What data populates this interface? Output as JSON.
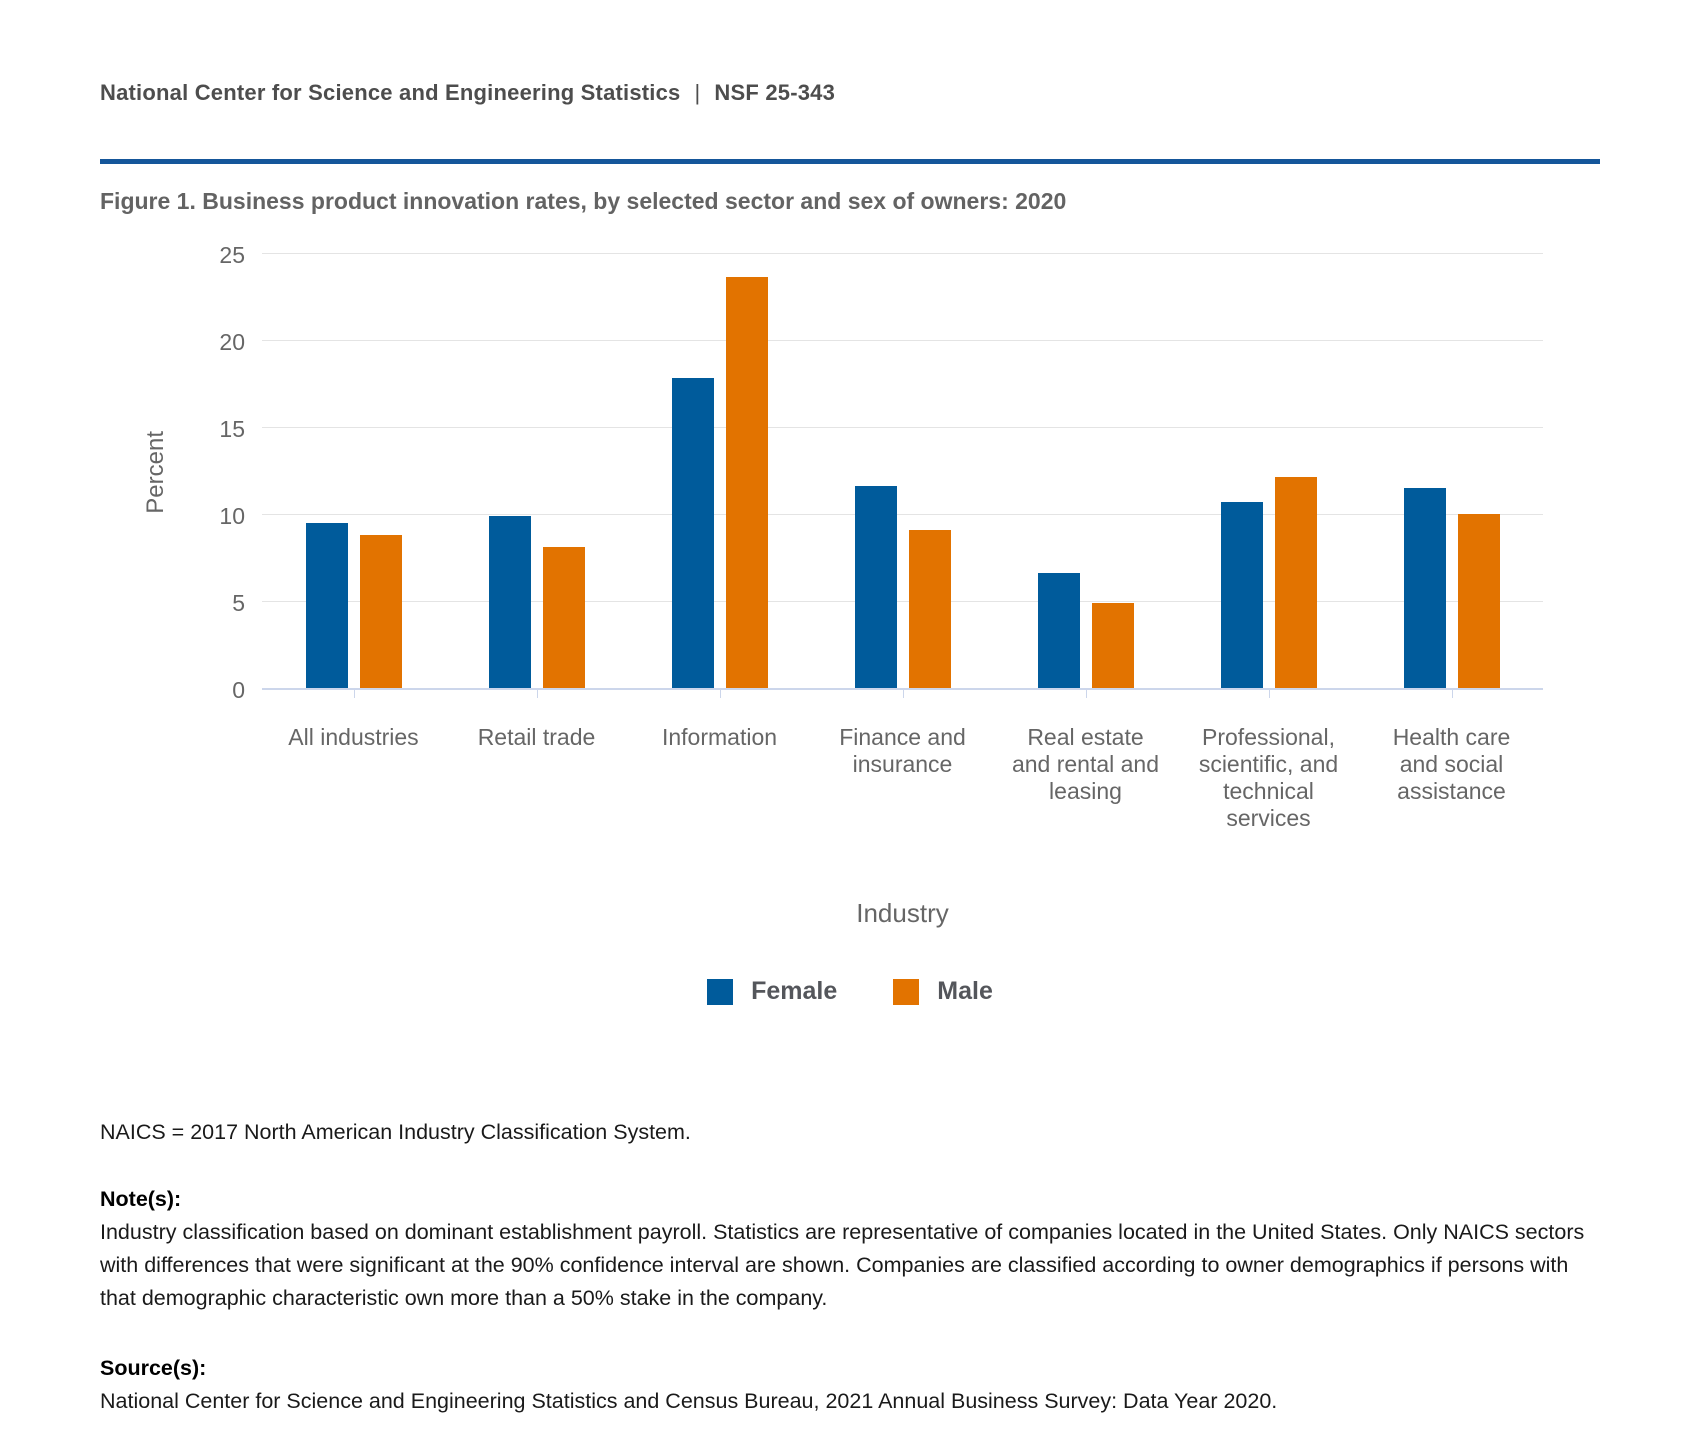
{
  "header": {
    "org": "National Center for Science and Engineering Statistics",
    "divider": "|",
    "report_number": "NSF 25-343"
  },
  "figure": {
    "title": "Figure 1. Business product innovation rates, by selected sector and sex of owners: 2020"
  },
  "chart_data": {
    "type": "bar",
    "title": "Figure 1. Business product innovation rates, by selected sector and sex of owners: 2020",
    "categories": [
      "All industries",
      "Retail trade",
      "Information",
      "Finance and insurance",
      "Real estate and rental and leasing",
      "Professional, scientific, and technical services",
      "Health care and social assistance"
    ],
    "category_label_lines": [
      [
        "All industries"
      ],
      [
        "Retail trade"
      ],
      [
        "Information"
      ],
      [
        "Finance and",
        "insurance"
      ],
      [
        "Real estate",
        "and rental and",
        "leasing"
      ],
      [
        "Professional,",
        "scientific, and",
        "technical",
        "services"
      ],
      [
        "Health care",
        "and social",
        "assistance"
      ]
    ],
    "series": [
      {
        "name": "Female",
        "color": "#005b9b",
        "values": [
          9.5,
          9.9,
          17.8,
          11.6,
          6.6,
          10.7,
          11.5
        ]
      },
      {
        "name": "Male",
        "color": "#e27300",
        "values": [
          8.8,
          8.1,
          23.6,
          9.1,
          4.9,
          12.1,
          10.0
        ]
      }
    ],
    "xlabel": "Industry",
    "ylabel": "Percent",
    "ylim": [
      0,
      25
    ],
    "yticks": [
      0,
      5,
      10,
      15,
      20,
      25
    ],
    "grid": true,
    "legend_position": "bottom"
  },
  "footnotes": {
    "naics_line": "NAICS = 2017 North American Industry Classification System.",
    "notes_heading": "Note(s):",
    "notes_body": "Industry classification based on dominant establishment payroll. Statistics are representative of companies located in the United States. Only NAICS sectors with differences that were significant at the 90% confidence interval are shown. Companies are classified according to owner demographics if persons with that demographic characteristic own more than a 50% stake in the company.",
    "sources_heading": "Source(s):",
    "sources_body": "National Center for Science and Engineering Statistics and Census Bureau, 2021 Annual Business Survey: Data Year 2020."
  },
  "colors": {
    "female_bar": "#005b9b",
    "male_bar": "#e27300",
    "header_rule": "#15569a",
    "gridline": "#e4e4e4",
    "axis_line": "#ccd6eb",
    "axis_text": "#666666"
  }
}
